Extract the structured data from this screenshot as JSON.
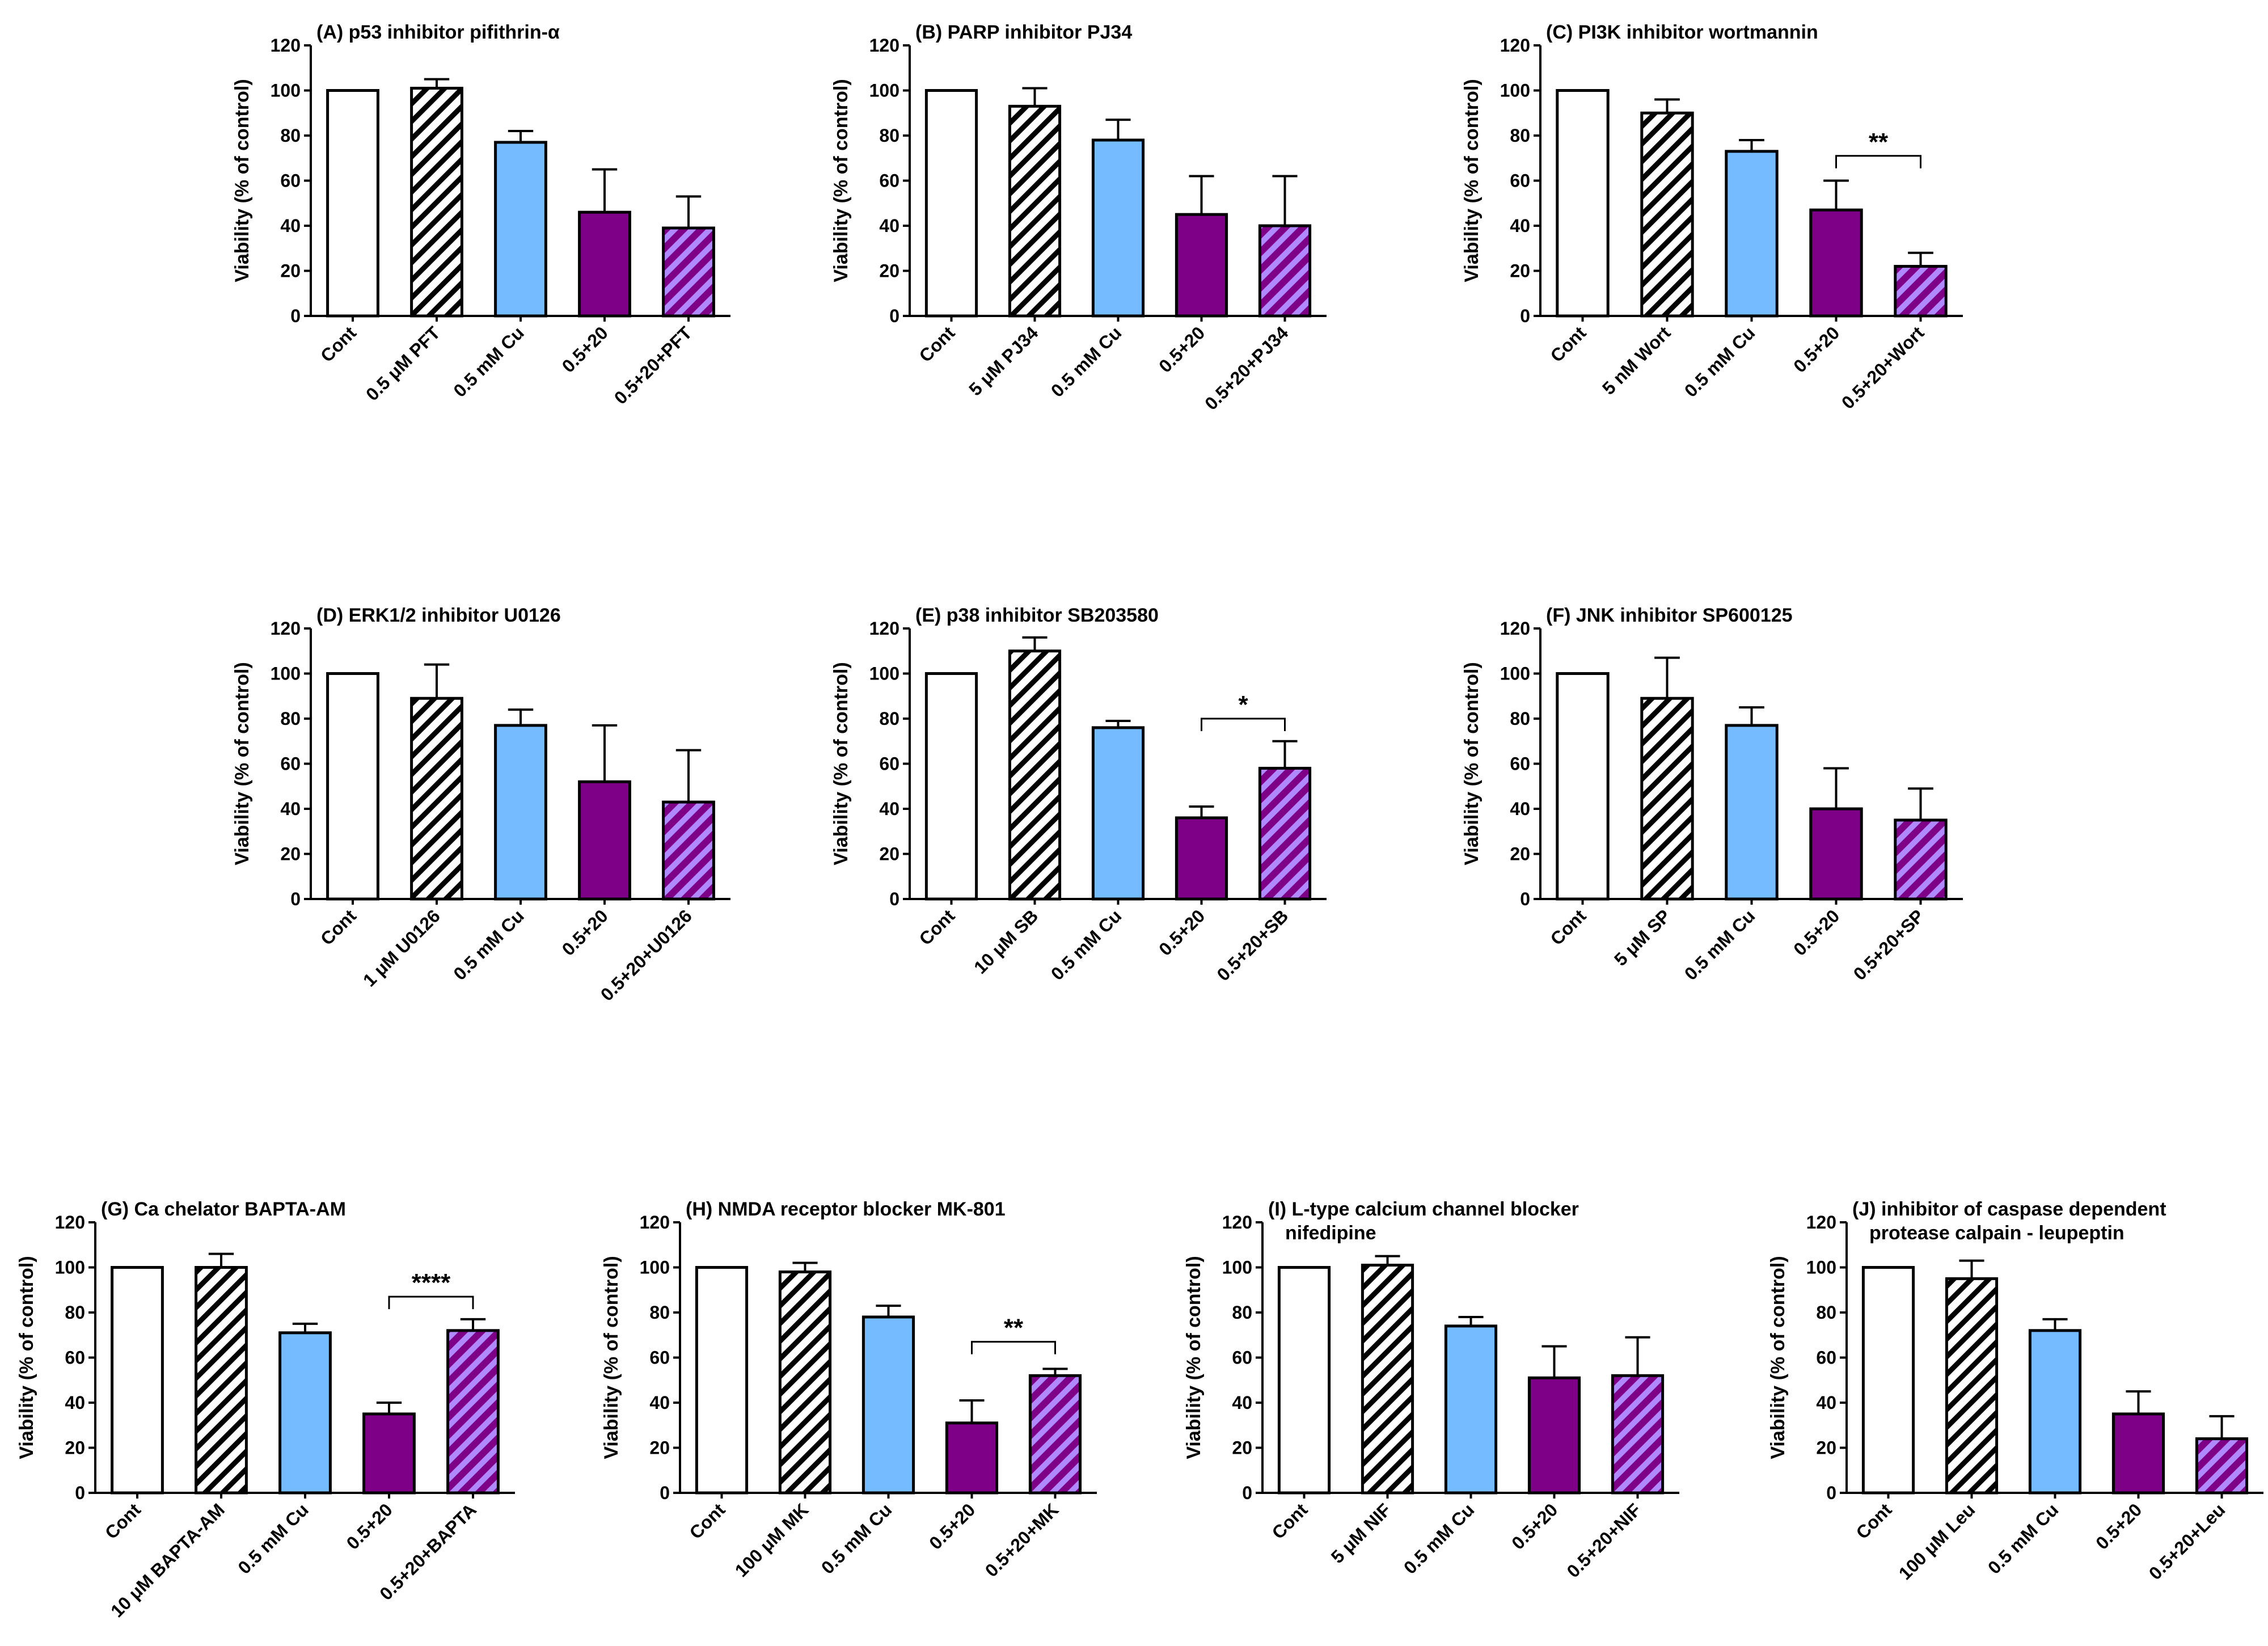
{
  "colors": {
    "control": "#ffffff",
    "inhibitor_hatch_bg": "#ffffff",
    "inhibitor_hatch_line": "#000000",
    "cu": "#74bcff",
    "combo": "#7d0087",
    "combo_inhibitor_bg": "#7d0087",
    "combo_inhibitor_hatch": "#b189ff",
    "stroke": "#000000"
  },
  "chart_data": [
    {
      "id": "A",
      "type": "bar",
      "title": "(A) p53 inhibitor pifithrin-α",
      "ylabel": "Viability (% of control)",
      "xlabel": "",
      "ylim": [
        0,
        120
      ],
      "yticks": [
        "0",
        "20",
        "40",
        "60",
        "80",
        "100",
        "120"
      ],
      "categories": [
        "Cont",
        "0.5 μM PFT",
        "0.5 mM Cu",
        "0.5+20",
        "0.5+20+PFT"
      ],
      "values": [
        100,
        101,
        77,
        46,
        39
      ],
      "errors": [
        0,
        4,
        5,
        19,
        14
      ],
      "fills": [
        "control",
        "hatch",
        "cu",
        "combo",
        "combo_hatch"
      ],
      "significance": null
    },
    {
      "id": "B",
      "type": "bar",
      "title": "(B) PARP inhibitor PJ34",
      "ylabel": "Viability (% of control)",
      "xlabel": "",
      "ylim": [
        0,
        120
      ],
      "yticks": [
        "0",
        "20",
        "40",
        "60",
        "80",
        "100",
        "120"
      ],
      "categories": [
        "Cont",
        "5 μM PJ34",
        "0.5 mM Cu",
        "0.5+20",
        "0.5+20+PJ34"
      ],
      "values": [
        100,
        93,
        78,
        45,
        40
      ],
      "errors": [
        0,
        8,
        9,
        17,
        22
      ],
      "fills": [
        "control",
        "hatch",
        "cu",
        "combo",
        "combo_hatch"
      ],
      "significance": null
    },
    {
      "id": "C",
      "type": "bar",
      "title": "(C) PI3K inhibitor wortmannin",
      "ylabel": "Viability (% of control)",
      "xlabel": "",
      "ylim": [
        0,
        120
      ],
      "yticks": [
        "0",
        "20",
        "40",
        "60",
        "80",
        "100",
        "120"
      ],
      "categories": [
        "Cont",
        "5 nM Wort",
        "0.5 mM Cu",
        "0.5+20",
        "0.5+20+Wort"
      ],
      "values": [
        100,
        90,
        73,
        47,
        22
      ],
      "errors": [
        0,
        6,
        5,
        13,
        6
      ],
      "fills": [
        "control",
        "hatch",
        "cu",
        "combo",
        "combo_hatch"
      ],
      "significance": {
        "from": 3,
        "to": 4,
        "label": "**",
        "level": 71
      }
    },
    {
      "id": "D",
      "type": "bar",
      "title": "(D) ERK1/2 inhibitor U0126",
      "ylabel": "Viability (% of control)",
      "xlabel": "",
      "ylim": [
        0,
        120
      ],
      "yticks": [
        "0",
        "20",
        "40",
        "60",
        "80",
        "100",
        "120"
      ],
      "categories": [
        "Cont",
        "1 μM U0126",
        "0.5 mM Cu",
        "0.5+20",
        "0.5+20+U0126"
      ],
      "values": [
        100,
        89,
        77,
        52,
        43
      ],
      "errors": [
        0,
        15,
        7,
        25,
        23
      ],
      "fills": [
        "control",
        "hatch",
        "cu",
        "combo",
        "combo_hatch"
      ],
      "significance": null
    },
    {
      "id": "E",
      "type": "bar",
      "title": "(E) p38 inhibitor SB203580",
      "ylabel": "Viability (% of control)",
      "xlabel": "",
      "ylim": [
        0,
        120
      ],
      "yticks": [
        "0",
        "20",
        "40",
        "60",
        "80",
        "100",
        "120"
      ],
      "categories": [
        "Cont",
        "10 μM SB",
        "0.5 mM Cu",
        "0.5+20",
        "0.5+20+SB"
      ],
      "values": [
        100,
        110,
        76,
        36,
        58
      ],
      "errors": [
        0,
        6,
        3,
        5,
        12
      ],
      "fills": [
        "control",
        "hatch",
        "cu",
        "combo",
        "combo_hatch"
      ],
      "significance": {
        "from": 3,
        "to": 4,
        "label": "*",
        "level": 80
      }
    },
    {
      "id": "F",
      "type": "bar",
      "title": "(F) JNK inhibitor SP600125",
      "ylabel": "Viability (% of control)",
      "xlabel": "",
      "ylim": [
        0,
        120
      ],
      "yticks": [
        "0",
        "20",
        "40",
        "60",
        "80",
        "100",
        "120"
      ],
      "categories": [
        "Cont",
        "5 μM SP",
        "0.5 mM Cu",
        "0.5+20",
        "0.5+20+SP"
      ],
      "values": [
        100,
        89,
        77,
        40,
        35
      ],
      "errors": [
        0,
        18,
        8,
        18,
        14
      ],
      "fills": [
        "control",
        "hatch",
        "cu",
        "combo",
        "combo_hatch"
      ],
      "significance": null
    },
    {
      "id": "G",
      "type": "bar",
      "title": "(G) Ca chelator BAPTA-AM",
      "ylabel": "Viability (% of control)",
      "xlabel": "",
      "ylim": [
        0,
        120
      ],
      "yticks": [
        "0",
        "20",
        "40",
        "60",
        "80",
        "100",
        "120"
      ],
      "categories": [
        "Cont",
        "10 μM BAPTA-AM",
        "0.5 mM Cu",
        "0.5+20",
        "0.5+20+BAPTA"
      ],
      "values": [
        100,
        100,
        71,
        35,
        72
      ],
      "errors": [
        0,
        6,
        4,
        5,
        5
      ],
      "fills": [
        "control",
        "hatch",
        "cu",
        "combo",
        "combo_hatch"
      ],
      "significance": {
        "from": 3,
        "to": 4,
        "label": "****",
        "level": 87
      }
    },
    {
      "id": "H",
      "type": "bar",
      "title": "(H) NMDA receptor blocker MK-801",
      "ylabel": "Viability (% of control)",
      "xlabel": "",
      "ylim": [
        0,
        120
      ],
      "yticks": [
        "0",
        "20",
        "40",
        "60",
        "80",
        "100",
        "120"
      ],
      "categories": [
        "Cont",
        "100 μM MK",
        "0.5 mM Cu",
        "0.5+20",
        "0.5+20+MK"
      ],
      "values": [
        100,
        98,
        78,
        31,
        52
      ],
      "errors": [
        0,
        4,
        5,
        10,
        3
      ],
      "fills": [
        "control",
        "hatch",
        "cu",
        "combo",
        "combo_hatch"
      ],
      "significance": {
        "from": 3,
        "to": 4,
        "label": "**",
        "level": 67
      }
    },
    {
      "id": "I",
      "type": "bar",
      "title": "(I) L-type calcium channel blocker",
      "title2": "nifedipine",
      "ylabel": "Viability (% of control)",
      "xlabel": "",
      "ylim": [
        0,
        120
      ],
      "yticks": [
        "0",
        "20",
        "40",
        "60",
        "80",
        "100",
        "120"
      ],
      "categories": [
        "Cont",
        "5 μM NIF",
        "0.5 mM Cu",
        "0.5+20",
        "0.5+20+NIF"
      ],
      "values": [
        100,
        101,
        74,
        51,
        52
      ],
      "errors": [
        0,
        4,
        4,
        14,
        17
      ],
      "fills": [
        "control",
        "hatch",
        "cu",
        "combo",
        "combo_hatch"
      ],
      "significance": null
    },
    {
      "id": "J",
      "type": "bar",
      "title": "(J) inhibitor of caspase dependent",
      "title2": "protease calpain - leupeptin",
      "ylabel": "Viability (% of control)",
      "xlabel": "",
      "ylim": [
        0,
        120
      ],
      "yticks": [
        "0",
        "20",
        "40",
        "60",
        "80",
        "100",
        "120"
      ],
      "categories": [
        "Cont",
        "100 μM Leu",
        "0.5 mM Cu",
        "0.5+20",
        "0.5+20+Leu"
      ],
      "values": [
        100,
        95,
        72,
        35,
        24
      ],
      "errors": [
        0,
        8,
        5,
        10,
        10
      ],
      "fills": [
        "control",
        "hatch",
        "cu",
        "combo",
        "combo_hatch"
      ],
      "significance": null
    }
  ]
}
